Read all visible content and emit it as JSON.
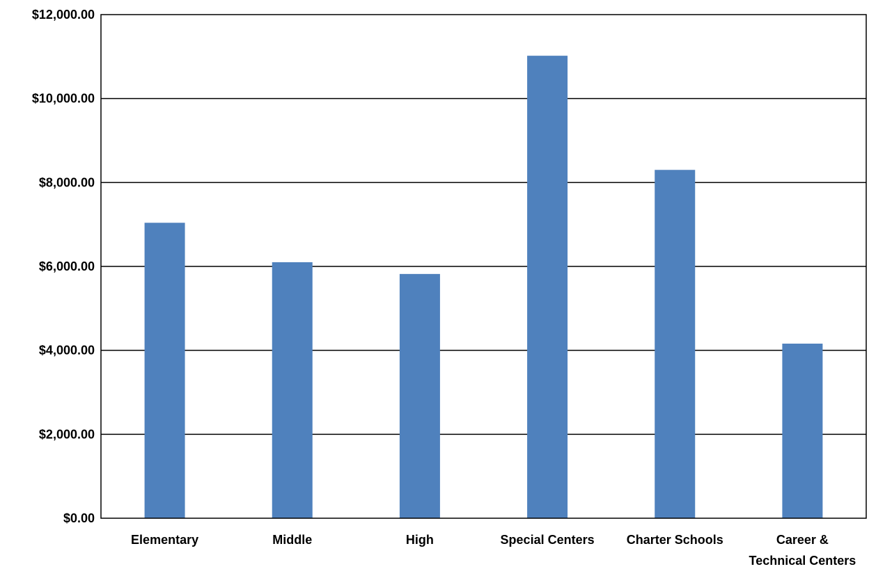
{
  "chart_data": {
    "type": "bar",
    "categories": [
      "Elementary",
      "Middle",
      "High",
      "Special Centers",
      "Charter Schools",
      "Career & Technical Centers"
    ],
    "category_label_lines": [
      [
        "Elementary"
      ],
      [
        "Middle"
      ],
      [
        "High"
      ],
      [
        "Special Centers"
      ],
      [
        "Charter Schools"
      ],
      [
        "Career &",
        "Technical Centers"
      ]
    ],
    "values": [
      7040,
      6100,
      5820,
      11020,
      8300,
      4160
    ],
    "y_ticks": [
      0,
      2000,
      4000,
      6000,
      8000,
      10000,
      12000
    ],
    "y_tick_labels": [
      "$0.00",
      "$2,000.00",
      "$4,000.00",
      "$6,000.00",
      "$8,000.00",
      "$10,000.00",
      "$12,000.00"
    ],
    "ylim": [
      0,
      12000
    ],
    "title": "",
    "xlabel": "",
    "ylabel": "",
    "grid": true,
    "legend": "none",
    "bar_color": "#4F81BD"
  }
}
